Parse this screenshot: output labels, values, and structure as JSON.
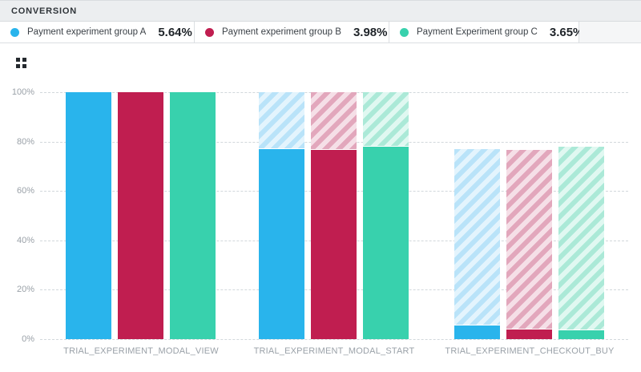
{
  "header": {
    "title": "CONVERSION"
  },
  "legend": [
    {
      "name": "Payment experiment group A",
      "value": "5.64%",
      "color": "#29b4ec"
    },
    {
      "name": "Payment experiment group B",
      "value": "3.98%",
      "color": "#c01e50"
    },
    {
      "name": "Payment Experiment group C",
      "value": "3.65%",
      "color": "#38d1ad"
    }
  ],
  "toolbar": {
    "grid_icon": "grid-view"
  },
  "chart_data": {
    "type": "bar",
    "subtype": "funnel-steps-with-dropoff-hatching",
    "title": "CONVERSION",
    "categories": [
      "TRIAL_EXPERIMENT_MODAL_VIEW",
      "TRIAL_EXPERIMENT_MODAL_START",
      "TRIAL_EXPERIMENT_CHECKOUT_BUY"
    ],
    "series": [
      {
        "name": "Payment experiment group A",
        "overall_conversion": "5.64%",
        "color": "#29b4ec",
        "hatch_stripe": "#b9e3f9",
        "hatch_bg": "#e3f4fd",
        "values": [
          100,
          77.0,
          5.64
        ]
      },
      {
        "name": "Payment experiment group B",
        "overall_conversion": "3.98%",
        "color": "#c01e50",
        "hatch_stripe": "#e2a7bc",
        "hatch_bg": "#f5dfe7",
        "values": [
          100,
          76.6,
          3.98
        ]
      },
      {
        "name": "Payment Experiment group C",
        "overall_conversion": "3.65%",
        "color": "#38d1ad",
        "hatch_stripe": "#abe9d7",
        "hatch_bg": "#e0f8f1",
        "values": [
          100,
          77.9,
          3.65
        ]
      }
    ],
    "yticks": [
      "100%",
      "80%",
      "60%",
      "40%",
      "20%",
      "0%"
    ],
    "ytick_values": [
      100,
      80,
      60,
      40,
      20,
      0
    ],
    "ylim": [
      0,
      100
    ],
    "grid": "dashed-horizontal",
    "legend_position": "top",
    "hatched_segments_meaning": "drop-off from previous step"
  }
}
